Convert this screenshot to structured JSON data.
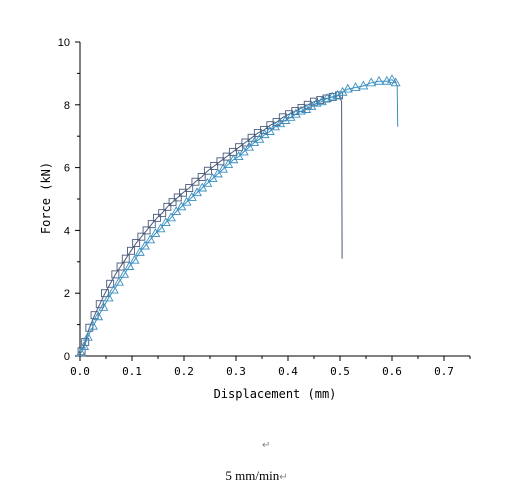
{
  "chart_data": {
    "type": "line",
    "xlabel": "Displacement (mm)",
    "ylabel": "Force (kN)",
    "xlim": [
      0,
      0.75
    ],
    "ylim": [
      0,
      10
    ],
    "xticks": [
      "0.0",
      "0.1",
      "0.2",
      "0.3",
      "0.4",
      "0.5",
      "0.6",
      "0.7"
    ],
    "yticks": [
      "0",
      "2",
      "4",
      "6",
      "8",
      "10"
    ],
    "grid": false,
    "series": [
      {
        "color": "#4a5a7a",
        "marker": "square",
        "x": [
          0.003,
          0.01,
          0.018,
          0.028,
          0.038,
          0.048,
          0.058,
          0.068,
          0.078,
          0.088,
          0.098,
          0.108,
          0.118,
          0.128,
          0.138,
          0.148,
          0.158,
          0.168,
          0.178,
          0.188,
          0.198,
          0.21,
          0.222,
          0.234,
          0.246,
          0.258,
          0.27,
          0.282,
          0.294,
          0.306,
          0.318,
          0.33,
          0.342,
          0.354,
          0.366,
          0.378,
          0.39,
          0.402,
          0.414,
          0.426,
          0.438,
          0.45,
          0.462,
          0.474,
          0.486,
          0.498,
          0.503,
          0.504
        ],
        "y": [
          0.15,
          0.45,
          0.9,
          1.3,
          1.65,
          2.0,
          2.3,
          2.6,
          2.85,
          3.1,
          3.35,
          3.6,
          3.8,
          4.0,
          4.2,
          4.4,
          4.55,
          4.75,
          4.9,
          5.05,
          5.2,
          5.35,
          5.55,
          5.7,
          5.9,
          6.05,
          6.2,
          6.35,
          6.5,
          6.65,
          6.8,
          6.95,
          7.1,
          7.2,
          7.35,
          7.45,
          7.6,
          7.7,
          7.8,
          7.9,
          8.0,
          8.1,
          8.15,
          8.2,
          8.25,
          8.3,
          8.1,
          3.1
        ]
      },
      {
        "color": "#3a8fc0",
        "marker": "triangle",
        "x": [
          0.002,
          0.008,
          0.015,
          0.025,
          0.035,
          0.045,
          0.055,
          0.065,
          0.075,
          0.085,
          0.095,
          0.105,
          0.115,
          0.125,
          0.135,
          0.145,
          0.155,
          0.165,
          0.175,
          0.185,
          0.195,
          0.205,
          0.215,
          0.225,
          0.235,
          0.245,
          0.255,
          0.265,
          0.275,
          0.285,
          0.295,
          0.305,
          0.315,
          0.325,
          0.335,
          0.345,
          0.355,
          0.365,
          0.375,
          0.385,
          0.395,
          0.405,
          0.415,
          0.425,
          0.435,
          0.445,
          0.455,
          0.465,
          0.475,
          0.485,
          0.495,
          0.505,
          0.515,
          0.53,
          0.545,
          0.56,
          0.575,
          0.59,
          0.6,
          0.607,
          0.61,
          0.611
        ],
        "y": [
          0.1,
          0.3,
          0.6,
          0.95,
          1.25,
          1.55,
          1.85,
          2.1,
          2.35,
          2.6,
          2.85,
          3.05,
          3.3,
          3.5,
          3.7,
          3.9,
          4.05,
          4.25,
          4.4,
          4.6,
          4.75,
          4.9,
          5.05,
          5.2,
          5.35,
          5.5,
          5.65,
          5.8,
          5.95,
          6.1,
          6.25,
          6.35,
          6.5,
          6.65,
          6.8,
          6.9,
          7.05,
          7.15,
          7.3,
          7.4,
          7.5,
          7.6,
          7.7,
          7.8,
          7.85,
          7.95,
          8.05,
          8.1,
          8.2,
          8.25,
          8.3,
          8.4,
          8.5,
          8.55,
          8.6,
          8.7,
          8.75,
          8.75,
          8.8,
          8.7,
          8.6,
          7.3
        ]
      }
    ]
  },
  "caption": {
    "mark1": "↵",
    "text": "5 mm/min",
    "mark2": "↵"
  }
}
